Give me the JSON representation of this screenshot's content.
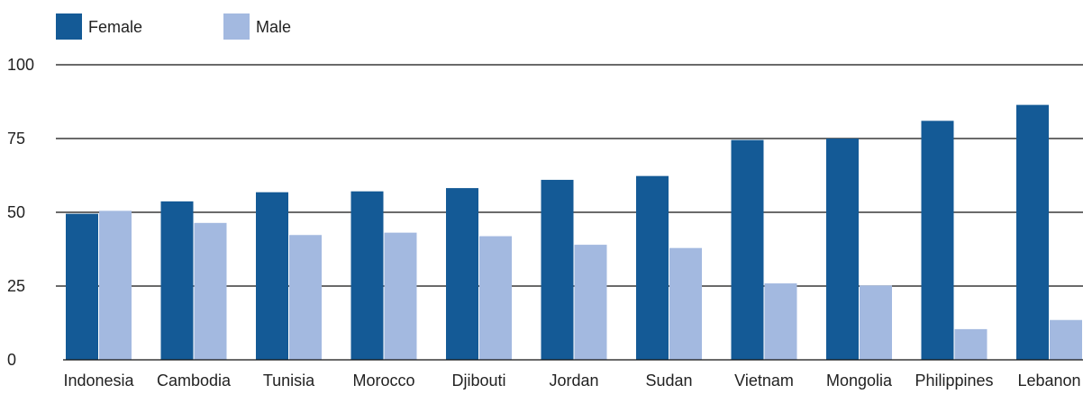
{
  "chart_data": {
    "type": "bar",
    "title": "",
    "xlabel": "",
    "ylabel": "",
    "ylim": [
      0,
      100
    ],
    "yticks": [
      0,
      25,
      50,
      75,
      100
    ],
    "grid": true,
    "legend_position": "top-left",
    "categories": [
      "Indonesia",
      "Cambodia",
      "Tunisia",
      "Morocco",
      "Djibouti",
      "Jordan",
      "Sudan",
      "Vietnam",
      "Mongolia",
      "Philippines",
      "Lebanon"
    ],
    "series": [
      {
        "name": "Female",
        "color": "#145a96",
        "values": [
          49.5,
          53.7,
          56.8,
          57.1,
          58.2,
          61.0,
          62.3,
          74.5,
          75.0,
          81.0,
          86.4
        ]
      },
      {
        "name": "Male",
        "color": "#a3b9e0",
        "values": [
          50.5,
          46.4,
          42.3,
          43.1,
          41.9,
          39.0,
          37.9,
          25.9,
          25.2,
          10.4,
          13.5
        ]
      }
    ]
  }
}
